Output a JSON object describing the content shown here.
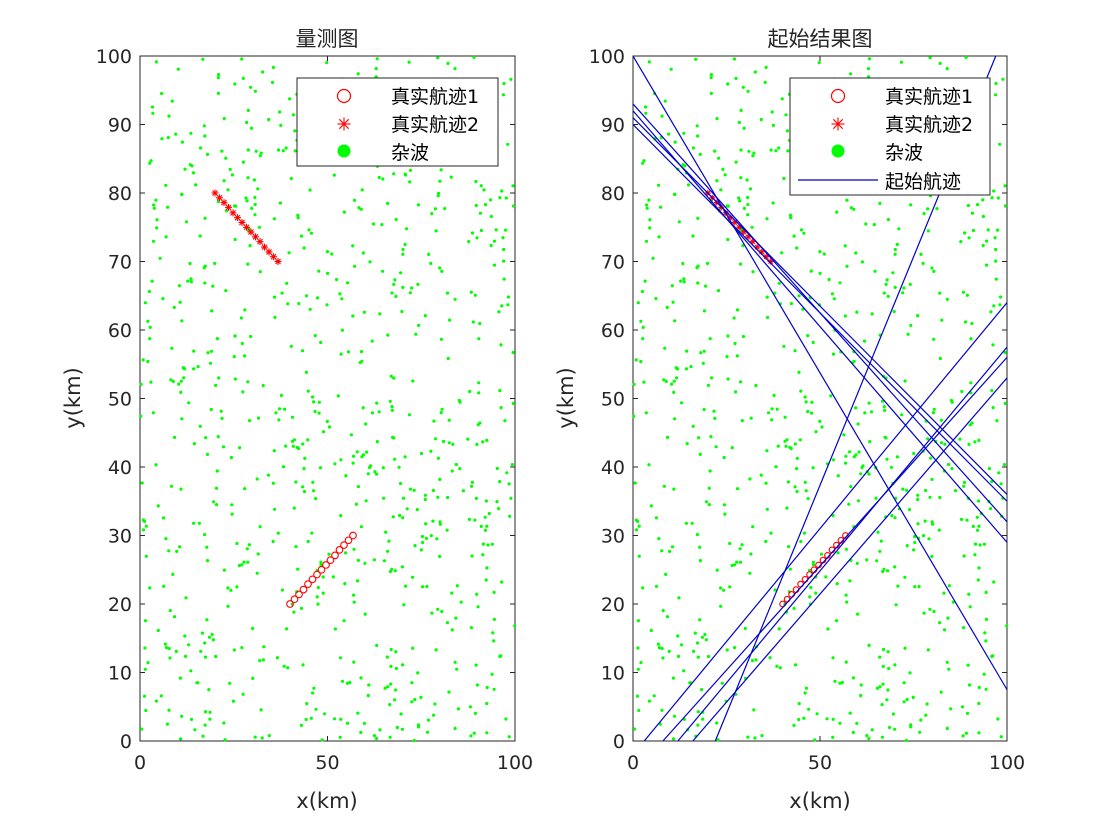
{
  "chart_data": [
    {
      "type": "scatter",
      "title": "量测图",
      "xlabel": "x(km)",
      "ylabel": "y(km)",
      "xlim": [
        0,
        100
      ],
      "ylim": [
        0,
        100
      ],
      "xticks": [
        0,
        50,
        100
      ],
      "yticks": [
        0,
        10,
        20,
        30,
        40,
        50,
        60,
        70,
        80,
        90,
        100
      ],
      "grid": false,
      "legend_position": "top-right",
      "colors": {
        "track": "#ff0000",
        "clutter": "#00ff00",
        "start_track": "#0000cc"
      },
      "series": [
        {
          "name": "真实航迹1",
          "marker": "circle",
          "x": [
            40,
            41.2,
            42.4,
            43.6,
            44.8,
            46,
            47.2,
            48.4,
            49.6,
            50.8,
            52,
            53.2,
            54.4,
            55.6,
            56.8
          ],
          "y": [
            20,
            20.7,
            21.4,
            22.1,
            22.9,
            23.6,
            24.3,
            25,
            25.7,
            26.4,
            27.1,
            27.9,
            28.6,
            29.3,
            30
          ]
        },
        {
          "name": "真实航迹2",
          "marker": "asterisk",
          "x": [
            20,
            21.2,
            22.4,
            23.6,
            24.8,
            26,
            27.2,
            28.4,
            29.6,
            30.8,
            32,
            33.2,
            34.4,
            35.6,
            36.8
          ],
          "y": [
            80,
            79.3,
            78.6,
            77.9,
            77.1,
            76.4,
            75.7,
            75,
            74.3,
            73.6,
            72.9,
            72.1,
            71.4,
            70.7,
            70
          ]
        },
        {
          "name": "杂波",
          "marker": "dot",
          "count": 800
        }
      ]
    },
    {
      "type": "scatter",
      "title": "起始结果图",
      "xlabel": "x(km)",
      "ylabel": "y(km)",
      "xlim": [
        0,
        100
      ],
      "ylim": [
        0,
        100
      ],
      "xticks": [
        0,
        50,
        100
      ],
      "yticks": [
        0,
        10,
        20,
        30,
        40,
        50,
        60,
        70,
        80,
        90,
        100
      ],
      "grid": false,
      "legend_position": "top-right",
      "series": [
        {
          "name": "真实航迹1",
          "marker": "circle"
        },
        {
          "name": "真实航迹2",
          "marker": "asterisk"
        },
        {
          "name": "杂波",
          "marker": "dot",
          "count": 800
        },
        {
          "name": "起始航迹",
          "marker": "line",
          "lines": [
            [
              [
                0,
                93
              ],
              [
                100,
                32
              ]
            ],
            [
              [
                0,
                92
              ],
              [
                100,
                29
              ]
            ],
            [
              [
                0,
                91
              ],
              [
                100,
                36
              ]
            ],
            [
              [
                0,
                90
              ],
              [
                100,
                35
              ]
            ],
            [
              [
                0,
                100
              ],
              [
                100,
                7.5
              ]
            ],
            [
              [
                3,
                0
              ],
              [
                100,
                64
              ]
            ],
            [
              [
                8,
                0
              ],
              [
                100,
                56
              ]
            ],
            [
              [
                12,
                0
              ],
              [
                100,
                57.5
              ]
            ],
            [
              [
                16,
                0
              ],
              [
                100,
                53
              ]
            ],
            [
              [
                22,
                0
              ],
              [
                97,
                100
              ]
            ]
          ]
        }
      ]
    }
  ]
}
